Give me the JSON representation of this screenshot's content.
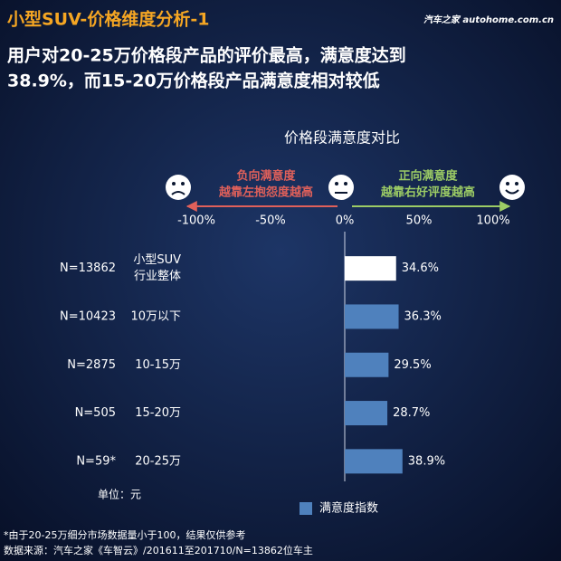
{
  "header": {
    "title": "小型SUV-价格维度分析-1",
    "watermark": "汽车之家 autohome.com.cn",
    "subtitle": [
      "用户对20-25万价格段产品的评价最高，满意度达到",
      "38.9%，而15-20万价格段产品满意度相对较低"
    ]
  },
  "chart_data": {
    "type": "bar",
    "orientation": "horizontal",
    "title": "价格段满意度对比",
    "negative_label": [
      "负向满意度",
      "越靠左抱怨度越高"
    ],
    "negative_color": "#e0605a",
    "positive_label": [
      "正向满意度",
      "越靠右好评度越高"
    ],
    "positive_color": "#9ccc65",
    "sample_labels": [
      "N=13862",
      "N=10423",
      "N=2875",
      "N=505",
      "N=59*"
    ],
    "categories": [
      [
        "小型SUV",
        "行业整体"
      ],
      "10万以下",
      "10-15万",
      "15-20万",
      "20-25万"
    ],
    "series": [
      {
        "name": "满意度指数",
        "color": "#4f81bd",
        "point_colors": [
          "#ffffff",
          "#4f81bd",
          "#4f81bd",
          "#4f81bd",
          "#4f81bd"
        ],
        "values": [
          34.6,
          36.3,
          29.5,
          28.7,
          38.9
        ],
        "value_labels": [
          "34.6%",
          "36.3%",
          "29.5%",
          "28.7%",
          "38.9%"
        ]
      }
    ],
    "xlim": [
      -100,
      100
    ],
    "xticks": [
      {
        "value": -100,
        "label": "-100%"
      },
      {
        "value": -50,
        "label": "-50%"
      },
      {
        "value": 0,
        "label": "0%"
      },
      {
        "value": 50,
        "label": "50%"
      },
      {
        "value": 100,
        "label": "100%"
      }
    ],
    "unit_note": "单位：元"
  },
  "footnotes": [
    "*由于20-25万细分市场数据量小于100，结果仅供参考",
    "数据来源：汽车之家《车智云》/201611至201710/N=13862位车主"
  ]
}
